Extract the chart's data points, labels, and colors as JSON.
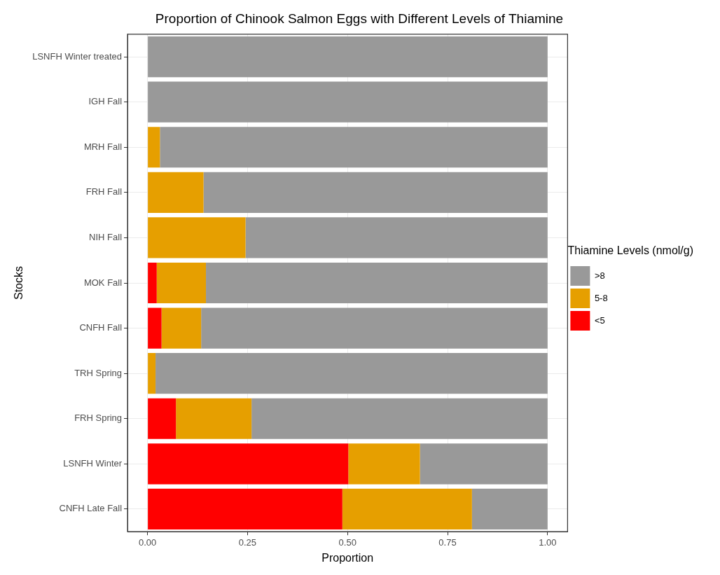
{
  "chart_data": {
    "type": "bar",
    "orientation": "horizontal",
    "stacked": true,
    "title": "Proportion of Chinook Salmon Eggs with Different Levels of Thiamine",
    "xlabel": "Proportion",
    "ylabel": "Stocks",
    "legend_title": "Thiamine Levels (nmol/g)",
    "legend": "right",
    "grid": true,
    "categories": [
      "LSNFH Winter treated",
      "IGH Fall",
      "MRH Fall",
      "FRH Fall",
      "NIH Fall",
      "MOK Fall",
      "CNFH Fall",
      "TRH Spring",
      "FRH Spring",
      "LSNFH Winter",
      "CNFH Late Fall"
    ],
    "xlim": [
      -0.05,
      1.05
    ],
    "xticks": [
      {
        "value": 0,
        "label": "0.00"
      },
      {
        "value": 0.25,
        "label": "0.25"
      },
      {
        "value": 0.5,
        "label": "0.50"
      },
      {
        "value": 0.75,
        "label": "0.75"
      },
      {
        "value": 1,
        "label": "1.00"
      }
    ],
    "series": [
      {
        "name": "<5",
        "color": "#ff0000",
        "values": [
          0,
          0,
          0,
          0,
          0,
          0.023,
          0.035,
          0,
          0.071,
          0.502,
          0.487
        ]
      },
      {
        "name": "5-8",
        "color": "#e69f00",
        "values": [
          0,
          0,
          0.031,
          0.14,
          0.245,
          0.123,
          0.099,
          0.02,
          0.189,
          0.179,
          0.324
        ]
      },
      {
        "name": ">8",
        "color": "#999999",
        "values": [
          1,
          1,
          0.969,
          0.86,
          0.755,
          0.854,
          0.866,
          0.98,
          0.74,
          0.319,
          0.189
        ]
      }
    ]
  }
}
